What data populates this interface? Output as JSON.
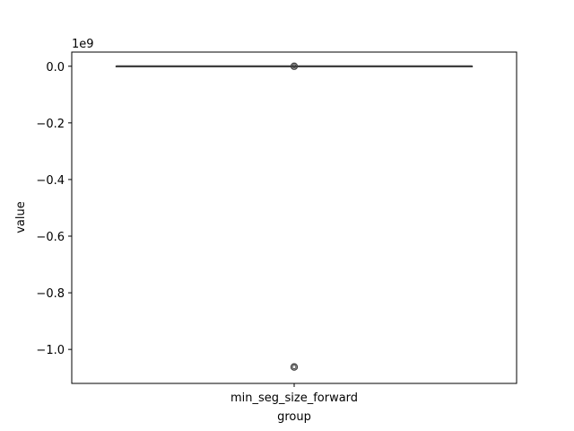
{
  "chart_data": {
    "type": "box",
    "title": "",
    "xlabel": "group",
    "ylabel": "value",
    "y_offset_label": "1e9",
    "categories": [
      "min_seg_size_forward"
    ],
    "y_ticks": [
      0.0,
      -0.2,
      -0.4,
      -0.6,
      -0.8,
      -1.0
    ],
    "y_tick_labels": [
      "0.0",
      "−0.2",
      "−0.4",
      "−0.6",
      "−0.8",
      "−1.0"
    ],
    "ylim": [
      -1.12,
      0.05
    ],
    "boxes": [
      {
        "category": "min_seg_size_forward",
        "whisker_low": 0.0,
        "q1": 0.0,
        "median": 0.0,
        "q3": 0.0,
        "whisker_high": 0.0,
        "outliers": [
          0.0,
          -1.062
        ]
      }
    ],
    "grid": false,
    "colors": {
      "box_line": "#3f3f3f",
      "axes": "#000000"
    }
  }
}
